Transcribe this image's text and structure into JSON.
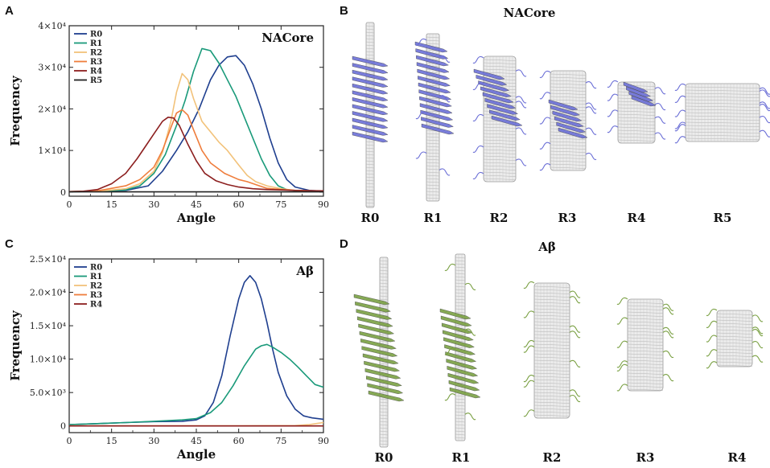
{
  "figure": {
    "panels": [
      {
        "id": "A",
        "label": "A"
      },
      {
        "id": "B",
        "label": "B"
      },
      {
        "id": "C",
        "label": "C"
      },
      {
        "id": "D",
        "label": "D"
      }
    ],
    "panel_b": {
      "title": "NACore",
      "structures": [
        "R0",
        "R1",
        "R2",
        "R3",
        "R4",
        "R5"
      ],
      "color": "#6b6fd6"
    },
    "panel_d": {
      "title": "Aβ",
      "structures": [
        "R0",
        "R1",
        "R2",
        "R3",
        "R4"
      ],
      "color": "#7aa043"
    }
  },
  "chart_data": [
    {
      "panel": "A",
      "type": "line",
      "title": "NACore",
      "xlabel": "Angle",
      "ylabel": "Frequency",
      "xlim": [
        0,
        90
      ],
      "ylim": [
        -1000,
        40000
      ],
      "xticks": [
        0,
        15,
        30,
        45,
        60,
        75,
        90
      ],
      "yticks": [
        {
          "value": 0,
          "label": "0"
        },
        {
          "value": 10000,
          "label": "1×10⁴"
        },
        {
          "value": 20000,
          "label": "2×10⁴"
        },
        {
          "value": 30000,
          "label": "3×10⁴"
        },
        {
          "value": 40000,
          "label": "4×10⁴"
        }
      ],
      "legend_position": "top-left",
      "series": [
        {
          "name": "R0",
          "color": "#1f3f8f",
          "x": [
            0,
            10,
            20,
            28,
            33,
            38,
            42,
            46,
            50,
            53,
            56,
            59,
            62,
            65,
            68,
            71,
            74,
            77,
            80,
            85,
            90
          ],
          "y": [
            100,
            150,
            400,
            1500,
            5000,
            10000,
            14500,
            20000,
            27000,
            30500,
            32500,
            32800,
            30500,
            26000,
            20000,
            13000,
            7000,
            3000,
            1200,
            400,
            200
          ]
        },
        {
          "name": "R1",
          "color": "#1a9a7a",
          "x": [
            0,
            10,
            20,
            25,
            30,
            34,
            38,
            41,
            44,
            47,
            50,
            53,
            56,
            59,
            62,
            65,
            68,
            71,
            74,
            77,
            80,
            85,
            90
          ],
          "y": [
            100,
            150,
            500,
            1500,
            4500,
            9000,
            16000,
            22000,
            29000,
            34500,
            34000,
            31000,
            27000,
            23000,
            18000,
            13000,
            8000,
            4000,
            1500,
            600,
            300,
            200,
            100
          ]
        },
        {
          "name": "R2",
          "color": "#f2c27a",
          "x": [
            0,
            10,
            20,
            25,
            30,
            33,
            36,
            38,
            40,
            42,
            44,
            47,
            50,
            53,
            56,
            60,
            63,
            66,
            70,
            75,
            80,
            90
          ],
          "y": [
            100,
            200,
            800,
            2000,
            5000,
            9500,
            17000,
            24000,
            28500,
            27000,
            22500,
            17000,
            14500,
            12000,
            10000,
            6500,
            4000,
            2500,
            1500,
            800,
            400,
            200
          ]
        },
        {
          "name": "R3",
          "color": "#ef7d3c",
          "x": [
            0,
            10,
            20,
            25,
            30,
            33,
            36,
            38,
            40,
            42,
            44,
            47,
            50,
            55,
            60,
            63,
            66,
            70,
            75,
            80,
            90
          ],
          "y": [
            100,
            300,
            1500,
            3000,
            6000,
            10000,
            15500,
            19000,
            19800,
            18500,
            15000,
            10000,
            7000,
            4500,
            3000,
            2500,
            1800,
            900,
            600,
            400,
            200
          ]
        },
        {
          "name": "R4",
          "color": "#8c1f1f",
          "x": [
            0,
            5,
            10,
            15,
            20,
            24,
            27,
            30,
            33,
            35,
            37,
            39,
            42,
            45,
            48,
            52,
            56,
            60,
            65,
            70,
            75,
            80,
            90
          ],
          "y": [
            100,
            200,
            600,
            2000,
            4500,
            8000,
            11000,
            14000,
            17000,
            18000,
            17800,
            16000,
            11500,
            7500,
            4500,
            2700,
            1800,
            1200,
            800,
            600,
            500,
            400,
            300
          ]
        },
        {
          "name": "R5",
          "color": "#222222",
          "x": [
            0,
            15,
            30,
            45,
            60,
            75,
            90
          ],
          "y": [
            50,
            50,
            50,
            50,
            50,
            50,
            50
          ]
        }
      ]
    },
    {
      "panel": "C",
      "type": "line",
      "title": "Aβ",
      "xlabel": "Angle",
      "ylabel": "Frequency",
      "xlim": [
        0,
        90
      ],
      "ylim": [
        -1000,
        25000
      ],
      "xticks": [
        0,
        15,
        30,
        45,
        60,
        75,
        90
      ],
      "yticks": [
        {
          "value": 0,
          "label": "0"
        },
        {
          "value": 5000,
          "label": "5.0×10³"
        },
        {
          "value": 10000,
          "label": "1.0×10⁴"
        },
        {
          "value": 15000,
          "label": "1.5×10⁴"
        },
        {
          "value": 20000,
          "label": "2.0×10⁴"
        },
        {
          "value": 25000,
          "label": "2.5×10⁴"
        }
      ],
      "legend_position": "top-left",
      "series": [
        {
          "name": "R0",
          "color": "#1f3f8f",
          "x": [
            0,
            10,
            20,
            30,
            40,
            45,
            48,
            51,
            54,
            57,
            60,
            62,
            64,
            66,
            68,
            70,
            72,
            74,
            77,
            80,
            83,
            86,
            90
          ],
          "y": [
            200,
            350,
            500,
            650,
            700,
            900,
            1500,
            3500,
            7500,
            13500,
            19000,
            21500,
            22500,
            21500,
            19000,
            15500,
            11500,
            8000,
            4500,
            2500,
            1500,
            1200,
            1000
          ]
        },
        {
          "name": "R1",
          "color": "#1a9a7a",
          "x": [
            0,
            10,
            20,
            30,
            40,
            45,
            50,
            54,
            58,
            62,
            66,
            68,
            70,
            72,
            75,
            78,
            81,
            84,
            87,
            90
          ],
          "y": [
            200,
            350,
            500,
            700,
            900,
            1100,
            2000,
            3500,
            6000,
            9000,
            11500,
            12000,
            12200,
            11800,
            11000,
            10000,
            8800,
            7500,
            6200,
            5800
          ]
        },
        {
          "name": "R2",
          "color": "#f2c27a",
          "x": [
            0,
            30,
            60,
            80,
            85,
            88,
            90
          ],
          "y": [
            0,
            0,
            0,
            50,
            200,
            400,
            500
          ]
        },
        {
          "name": "R3",
          "color": "#ef7d3c",
          "x": [
            0,
            30,
            60,
            90
          ],
          "y": [
            0,
            0,
            0,
            0
          ]
        },
        {
          "name": "R4",
          "color": "#8c1f1f",
          "x": [
            0,
            30,
            60,
            90
          ],
          "y": [
            0,
            0,
            0,
            0
          ]
        }
      ]
    }
  ]
}
